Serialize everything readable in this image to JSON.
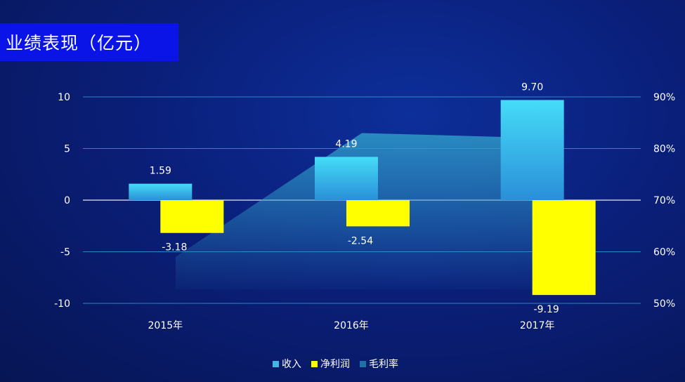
{
  "title": "业绩表现（亿元）",
  "colors": {
    "revenue": "#3fd0f0",
    "net_profit": "#ffff00",
    "gross_margin": "#2a7fb0"
  },
  "legend": [
    "收入",
    "净利润",
    "毛利率"
  ],
  "chart_data": {
    "type": "bar",
    "title": "业绩表现（亿元）",
    "categories": [
      "2015年",
      "2016年",
      "2017年"
    ],
    "series": [
      {
        "name": "收入",
        "type": "bar",
        "axis": "left",
        "values": [
          1.59,
          4.19,
          9.7
        ],
        "labels": [
          "1.59",
          "4.19",
          "9.70"
        ]
      },
      {
        "name": "净利润",
        "type": "bar",
        "axis": "left",
        "values": [
          -3.18,
          -2.54,
          -9.19
        ],
        "labels": [
          "-3.18",
          "-2.54",
          "-9.19"
        ]
      },
      {
        "name": "毛利率",
        "type": "area",
        "axis": "right",
        "values": [
          0.59,
          0.83,
          0.82
        ]
      }
    ],
    "y_left": {
      "min": -10,
      "max": 10,
      "ticks": [
        "10",
        "5",
        "0",
        "-5",
        "-10"
      ],
      "tick_values": [
        10,
        5,
        0,
        -5,
        -10
      ]
    },
    "y_right": {
      "min": 0.5,
      "max": 0.9,
      "ticks": [
        "90%",
        "80%",
        "70%",
        "60%",
        "50%"
      ],
      "tick_values": [
        0.9,
        0.8,
        0.7,
        0.6,
        0.5
      ]
    },
    "grid": true,
    "legend_position": "bottom"
  }
}
